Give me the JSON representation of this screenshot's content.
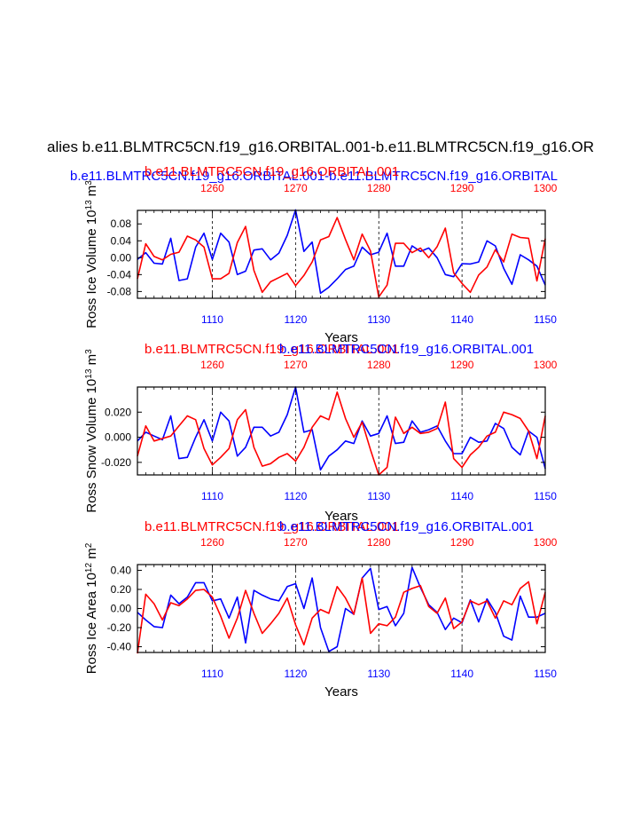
{
  "page": {
    "main_title": "alies b.e11.BLMTRC5CN.f19_g16.ORBITAL.001-b.e11.BLMTRC5CN.f19_g16.OR",
    "top_title_blue": "b.e11.BLMTRC5CN.f19_g16.ORBITAL.001-b.e11.BLMTRC5CN.f19_g16.ORBITAL",
    "top_title_red": "b.e11.BLMTRC5CN.f19_g16.ORBITAL.001"
  },
  "colors": {
    "blue": "#0000ff",
    "red": "#ff0000",
    "axis": "#000000",
    "grid": "#000000"
  },
  "chart_data": [
    {
      "type": "line",
      "name": "ross-ice-volume",
      "title_red": "b.e11.BLMTRC5CN.f19_g16.ORBITAL.001",
      "title_blue": "b.e11.BLMTRC5CN.f19_g16.ORBITAL.001",
      "ylabel_main": "Ross Ice Volume 10",
      "ylabel_exp": "13",
      "ylabel_unit": " m",
      "ylabel_unit_exp": "3",
      "xlabel": "Years",
      "x_bottom_ticks": [
        1110,
        1120,
        1130,
        1140,
        1150
      ],
      "x_bottom_labels": [
        "1110",
        "1120",
        "1130",
        "1140",
        "1150"
      ],
      "x_top_ticks": [
        1260,
        1270,
        1280,
        1290,
        1300
      ],
      "x_top_labels": [
        "1260",
        "1270",
        "1280",
        "1290",
        "1300"
      ],
      "xlim_bottom": [
        1101,
        1150
      ],
      "xlim_top": [
        1251,
        1300
      ],
      "y_ticks": [
        0.08,
        0.04,
        0.0,
        -0.04,
        -0.08
      ],
      "y_tick_labels": [
        "0.08",
        "0.04",
        "0.00",
        "-0.04",
        "-0.08"
      ],
      "ylim": [
        -0.096,
        0.112
      ],
      "series": [
        {
          "name": "b.e11.BLMTRC5CN.f19_g16.ORBITAL.001 (1101-1150)",
          "color": "blue",
          "x": [
            1101,
            1102,
            1103,
            1104,
            1105,
            1106,
            1107,
            1108,
            1109,
            1110,
            1111,
            1112,
            1113,
            1114,
            1115,
            1116,
            1117,
            1118,
            1119,
            1120,
            1121,
            1122,
            1123,
            1124,
            1125,
            1126,
            1127,
            1128,
            1129,
            1130,
            1131,
            1132,
            1133,
            1134,
            1135,
            1136,
            1137,
            1138,
            1139,
            1140,
            1141,
            1142,
            1143,
            1144,
            1145,
            1146,
            1147,
            1148,
            1149,
            1150
          ],
          "values": [
            -0.004,
            0.012,
            -0.013,
            -0.015,
            0.046,
            -0.054,
            -0.05,
            0.025,
            0.058,
            -0.004,
            0.058,
            0.037,
            -0.04,
            -0.032,
            0.018,
            0.021,
            -0.005,
            0.011,
            0.053,
            0.113,
            0.015,
            0.037,
            -0.084,
            -0.07,
            -0.05,
            -0.028,
            -0.02,
            0.025,
            0.007,
            0.013,
            0.058,
            -0.02,
            -0.02,
            0.028,
            0.015,
            0.023,
            0.0,
            -0.04,
            -0.045,
            -0.014,
            -0.015,
            -0.01,
            0.04,
            0.028,
            -0.025,
            -0.063,
            0.007,
            -0.005,
            -0.02,
            -0.065
          ]
        },
        {
          "name": "b.e11.BLMTRC5CN.f19_g16.ORBITAL.001 (1251-1300)",
          "color": "red",
          "x": [
            1251,
            1252,
            1253,
            1254,
            1255,
            1256,
            1257,
            1258,
            1259,
            1260,
            1261,
            1262,
            1263,
            1264,
            1265,
            1266,
            1267,
            1268,
            1269,
            1270,
            1271,
            1272,
            1273,
            1274,
            1275,
            1276,
            1277,
            1278,
            1279,
            1280,
            1281,
            1282,
            1283,
            1284,
            1285,
            1286,
            1287,
            1288,
            1289,
            1290,
            1291,
            1292,
            1293,
            1294,
            1295,
            1296,
            1297,
            1298,
            1299,
            1300
          ],
          "values": [
            -0.05,
            0.033,
            0.003,
            -0.005,
            0.008,
            0.013,
            0.051,
            0.042,
            0.025,
            -0.05,
            -0.05,
            -0.037,
            0.036,
            0.074,
            -0.03,
            -0.082,
            -0.057,
            -0.047,
            -0.037,
            -0.066,
            -0.042,
            -0.01,
            0.042,
            0.05,
            0.095,
            0.043,
            -0.005,
            0.056,
            0.016,
            -0.093,
            -0.065,
            0.034,
            0.034,
            0.012,
            0.023,
            0.0,
            0.026,
            0.07,
            -0.036,
            -0.061,
            -0.082,
            -0.041,
            -0.022,
            0.019,
            -0.01,
            0.056,
            0.048,
            0.046,
            -0.055,
            0.045
          ]
        }
      ]
    },
    {
      "type": "line",
      "name": "ross-snow-volume",
      "title_red": "b.e11.BLMTRC5CN.f19_g16.ORBITAL.001",
      "title_blue": "b.e11.BLMTRC5CN.f19_g16.ORBITAL.001",
      "ylabel_main": "Ross Snow Volume 10",
      "ylabel_exp": "13",
      "ylabel_unit": " m",
      "ylabel_unit_exp": "3",
      "xlabel": "Years",
      "x_bottom_ticks": [
        1110,
        1120,
        1130,
        1140,
        1150
      ],
      "x_bottom_labels": [
        "1110",
        "1120",
        "1130",
        "1140",
        "1150"
      ],
      "x_top_ticks": [
        1260,
        1270,
        1280,
        1290,
        1300
      ],
      "x_top_labels": [
        "1260",
        "1270",
        "1280",
        "1290",
        "1300"
      ],
      "xlim_bottom": [
        1101,
        1150
      ],
      "xlim_top": [
        1251,
        1300
      ],
      "y_ticks": [
        0.02,
        0.0,
        -0.02
      ],
      "y_tick_labels": [
        "0.020",
        "0.000",
        "-0.020"
      ],
      "ylim": [
        -0.03,
        0.04
      ],
      "series": [
        {
          "name": "b.e11.BLMTRC5CN.f19_g16.ORBITAL.001 (1101-1150)",
          "color": "blue",
          "x": [
            1101,
            1102,
            1103,
            1104,
            1105,
            1106,
            1107,
            1108,
            1109,
            1110,
            1111,
            1112,
            1113,
            1114,
            1115,
            1116,
            1117,
            1118,
            1119,
            1120,
            1121,
            1122,
            1123,
            1124,
            1125,
            1126,
            1127,
            1128,
            1129,
            1130,
            1131,
            1132,
            1133,
            1134,
            1135,
            1136,
            1137,
            1138,
            1139,
            1140,
            1141,
            1142,
            1143,
            1144,
            1145,
            1146,
            1147,
            1148,
            1149,
            1150
          ],
          "values": [
            -0.003,
            0.004,
            0.001,
            -0.002,
            0.017,
            -0.017,
            -0.016,
            0.0,
            0.014,
            -0.003,
            0.02,
            0.013,
            -0.015,
            -0.008,
            0.008,
            0.008,
            0.001,
            0.004,
            0.018,
            0.04,
            0.004,
            0.006,
            -0.026,
            -0.015,
            -0.01,
            -0.003,
            -0.005,
            0.013,
            0.001,
            0.003,
            0.017,
            -0.005,
            -0.004,
            0.013,
            0.004,
            0.006,
            0.009,
            -0.003,
            -0.013,
            -0.013,
            0.0,
            -0.004,
            -0.003,
            0.011,
            0.007,
            -0.008,
            -0.014,
            0.005,
            0.0,
            -0.025
          ]
        },
        {
          "name": "b.e11.BLMTRC5CN.f19_g16.ORBITAL.001 (1251-1300)",
          "color": "red",
          "x": [
            1251,
            1252,
            1253,
            1254,
            1255,
            1256,
            1257,
            1258,
            1259,
            1260,
            1261,
            1262,
            1263,
            1264,
            1265,
            1266,
            1267,
            1268,
            1269,
            1270,
            1271,
            1272,
            1273,
            1274,
            1275,
            1276,
            1277,
            1278,
            1279,
            1280,
            1281,
            1282,
            1283,
            1284,
            1285,
            1286,
            1287,
            1288,
            1289,
            1290,
            1291,
            1292,
            1293,
            1294,
            1295,
            1296,
            1297,
            1298,
            1299,
            1300
          ],
          "values": [
            -0.015,
            0.009,
            -0.003,
            -0.001,
            0.001,
            0.009,
            0.017,
            0.014,
            -0.009,
            -0.022,
            -0.016,
            -0.009,
            0.014,
            0.022,
            -0.008,
            -0.023,
            -0.021,
            -0.016,
            -0.013,
            -0.019,
            -0.008,
            0.008,
            0.017,
            0.014,
            0.036,
            0.015,
            0.0,
            0.012,
            -0.01,
            -0.03,
            -0.024,
            0.016,
            0.003,
            0.008,
            0.003,
            0.004,
            0.007,
            0.028,
            -0.017,
            -0.024,
            -0.014,
            -0.008,
            0.001,
            0.004,
            0.02,
            0.018,
            0.015,
            0.005,
            -0.017,
            0.017
          ]
        }
      ]
    },
    {
      "type": "line",
      "name": "ross-ice-area",
      "title_red": "b.e11.BLMTRC5CN.f19_g16.ORBITAL.001",
      "title_blue": "b.e11.BLMTRC5CN.f19_g16.ORBITAL.001",
      "ylabel_main": "Ross Ice Area 10",
      "ylabel_exp": "12",
      "ylabel_unit": " m",
      "ylabel_unit_exp": "2",
      "xlabel": "Years",
      "x_bottom_ticks": [
        1110,
        1120,
        1130,
        1140,
        1150
      ],
      "x_bottom_labels": [
        "1110",
        "1120",
        "1130",
        "1140",
        "1150"
      ],
      "x_top_ticks": [
        1260,
        1270,
        1280,
        1290,
        1300
      ],
      "x_top_labels": [
        "1260",
        "1270",
        "1280",
        "1290",
        "1300"
      ],
      "xlim_bottom": [
        1101,
        1150
      ],
      "xlim_top": [
        1251,
        1300
      ],
      "y_ticks": [
        0.4,
        0.2,
        0.0,
        -0.2,
        -0.4
      ],
      "y_tick_labels": [
        "0.40",
        "0.20",
        "0.00",
        "-0.20",
        "-0.40"
      ],
      "ylim": [
        -0.46,
        0.46
      ],
      "series": [
        {
          "name": "b.e11.BLMTRC5CN.f19_g16.ORBITAL.001 (1101-1150)",
          "color": "blue",
          "x": [
            1101,
            1102,
            1103,
            1104,
            1105,
            1106,
            1107,
            1108,
            1109,
            1110,
            1111,
            1112,
            1113,
            1114,
            1115,
            1116,
            1117,
            1118,
            1119,
            1120,
            1121,
            1122,
            1123,
            1124,
            1125,
            1126,
            1127,
            1128,
            1129,
            1130,
            1131,
            1132,
            1133,
            1134,
            1135,
            1136,
            1137,
            1138,
            1139,
            1140,
            1141,
            1142,
            1143,
            1144,
            1145,
            1146,
            1147,
            1148,
            1149,
            1150
          ],
          "values": [
            -0.04,
            -0.12,
            -0.19,
            -0.2,
            0.14,
            0.05,
            0.12,
            0.27,
            0.27,
            0.08,
            0.1,
            -0.1,
            0.12,
            -0.36,
            0.19,
            0.14,
            0.1,
            0.08,
            0.23,
            0.26,
            0.0,
            0.32,
            -0.2,
            -0.45,
            -0.4,
            0.0,
            -0.06,
            0.32,
            0.42,
            -0.01,
            0.02,
            -0.18,
            -0.05,
            0.43,
            0.22,
            0.04,
            -0.04,
            -0.22,
            -0.1,
            -0.15,
            0.09,
            -0.14,
            0.1,
            -0.04,
            -0.29,
            -0.33,
            0.13,
            -0.09,
            -0.09,
            -0.05
          ]
        },
        {
          "name": "b.e11.BLMTRC5CN.f19_g16.ORBITAL.001 (1251-1300)",
          "color": "red",
          "x": [
            1251,
            1252,
            1253,
            1254,
            1255,
            1256,
            1257,
            1258,
            1259,
            1260,
            1261,
            1262,
            1263,
            1264,
            1265,
            1266,
            1267,
            1268,
            1269,
            1270,
            1271,
            1272,
            1273,
            1274,
            1275,
            1276,
            1277,
            1278,
            1279,
            1280,
            1281,
            1282,
            1283,
            1284,
            1285,
            1286,
            1287,
            1288,
            1289,
            1290,
            1291,
            1292,
            1293,
            1294,
            1295,
            1296,
            1297,
            1298,
            1299,
            1300
          ],
          "values": [
            -0.47,
            0.15,
            0.05,
            -0.12,
            0.06,
            0.03,
            0.1,
            0.19,
            0.2,
            0.12,
            -0.08,
            -0.31,
            -0.1,
            0.19,
            -0.05,
            -0.26,
            -0.16,
            -0.05,
            0.11,
            -0.17,
            -0.38,
            -0.1,
            -0.01,
            -0.05,
            0.23,
            0.11,
            -0.06,
            0.32,
            -0.26,
            -0.16,
            -0.18,
            -0.09,
            0.17,
            0.21,
            0.24,
            0.02,
            -0.05,
            0.11,
            -0.21,
            -0.14,
            0.08,
            0.04,
            0.08,
            -0.1,
            0.08,
            0.04,
            0.21,
            0.28,
            -0.16,
            0.17
          ]
        }
      ]
    }
  ]
}
